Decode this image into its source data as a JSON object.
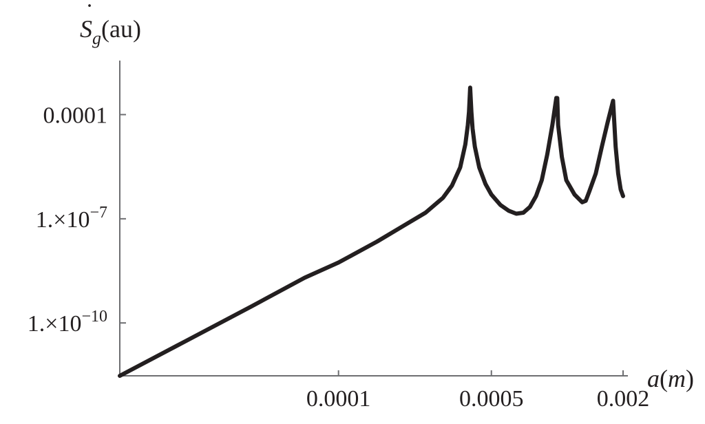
{
  "chart_data": {
    "type": "line",
    "x_scale": "log",
    "y_scale": "log",
    "xlabel": {
      "base": "a",
      "paren_open": "(",
      "unit": "m",
      "paren_close": ")"
    },
    "ylabel": {
      "dot": "˙",
      "base": "S",
      "sub": "g",
      "unit": "(au)"
    },
    "x_ticks": [
      {
        "value": 0.0001,
        "label": "0.0001"
      },
      {
        "value": 0.0005,
        "label": "0.0005"
      },
      {
        "value": 0.002,
        "label": "0.002"
      }
    ],
    "y_ticks": [
      {
        "value": 0.0001,
        "mantissa": "0.0001",
        "exponent": ""
      },
      {
        "value": 1e-07,
        "mantissa": "1.×10",
        "exponent": "−7"
      },
      {
        "value": 1e-10,
        "mantissa": "1.×10",
        "exponent": "−10"
      }
    ],
    "xlim": [
      1e-05,
      0.002
    ],
    "ylim": [
      3e-12,
      0.003
    ],
    "grid": false,
    "legend": "none",
    "line_color": "#231f20",
    "series": [
      {
        "x": [
          1e-05,
          2e-05,
          4e-05,
          7e-05,
          0.0001,
          0.00015,
          0.0002,
          0.00025,
          0.0003,
          0.00033,
          0.00036,
          0.00038,
          0.00039,
          0.000395,
          0.0004,
          0.000405,
          0.00041,
          0.00042,
          0.00044,
          0.00047,
          0.0005,
          0.00055,
          0.0006,
          0.00065,
          0.0007,
          0.00075,
          0.0008,
          0.00085,
          0.0009,
          0.00095,
          0.00099,
          0.001,
          0.00101,
          0.00105,
          0.0011,
          0.0012,
          0.0013,
          0.00135,
          0.0014,
          0.0015,
          0.0016,
          0.0017,
          0.0018,
          0.00185,
          0.0019,
          0.00195,
          0.002
        ],
        "y": [
          3e-12,
          3e-11,
          3e-10,
          2e-09,
          5.5e-09,
          2.2e-08,
          6.5e-08,
          1.5e-07,
          4e-07,
          9e-07,
          3e-06,
          1.4e-05,
          5e-05,
          0.00012,
          0.0006,
          0.00012,
          4e-05,
          1.2e-05,
          3e-06,
          1e-06,
          5e-07,
          2.5e-07,
          1.7e-07,
          1.4e-07,
          1.5e-07,
          2.2e-07,
          4.5e-07,
          1.3e-06,
          7e-06,
          5e-05,
          0.0003,
          0.0003,
          5e-05,
          6e-06,
          1.3e-06,
          5e-07,
          3e-07,
          3.3e-07,
          6e-07,
          2e-06,
          1.2e-05,
          6e-05,
          0.00025,
          1.2e-05,
          2e-06,
          7e-07,
          4.5e-07
        ]
      }
    ]
  }
}
